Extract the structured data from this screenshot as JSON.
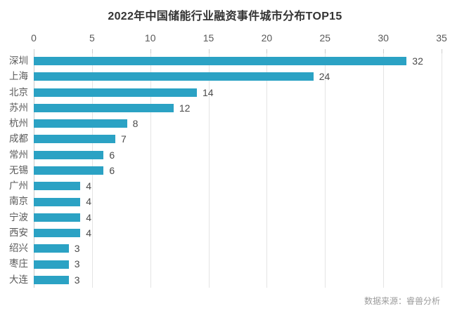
{
  "title": "2022年中国储能行业融资事件城市分布TOP15",
  "footer": {
    "source_label": "数据来源：睿兽分析"
  },
  "colors": {
    "bar": "#2BA2C4",
    "title_text": "#333333",
    "axis_text": "#595959",
    "category_text": "#595959",
    "value_text": "#4A4A4A",
    "gridline": "#E4E4E4",
    "axis_line": "#C9C9C9",
    "source_text": "#9B9B9B",
    "background": "#FFFFFF"
  },
  "chart_data": {
    "type": "bar",
    "orientation": "horizontal",
    "title": "2022年中国储能行业融资事件城市分布TOP15",
    "categories": [
      "深圳",
      "上海",
      "北京",
      "苏州",
      "杭州",
      "成都",
      "常州",
      "无锡",
      "广州",
      "南京",
      "宁波",
      "西安",
      "绍兴",
      "枣庄",
      "大连"
    ],
    "values": [
      32,
      24,
      14,
      12,
      8,
      7,
      6,
      6,
      4,
      4,
      4,
      4,
      3,
      3,
      3
    ],
    "xlabel": "",
    "ylabel": "",
    "xlim": [
      0,
      35
    ],
    "x_ticks": [
      0,
      5,
      10,
      15,
      20,
      25,
      30,
      35
    ],
    "x_axis_position": "top",
    "grid": true,
    "legend": false,
    "value_labels_shown": true,
    "bar_color": "#2BA2C4",
    "source": "数据来源：睿兽分析"
  }
}
